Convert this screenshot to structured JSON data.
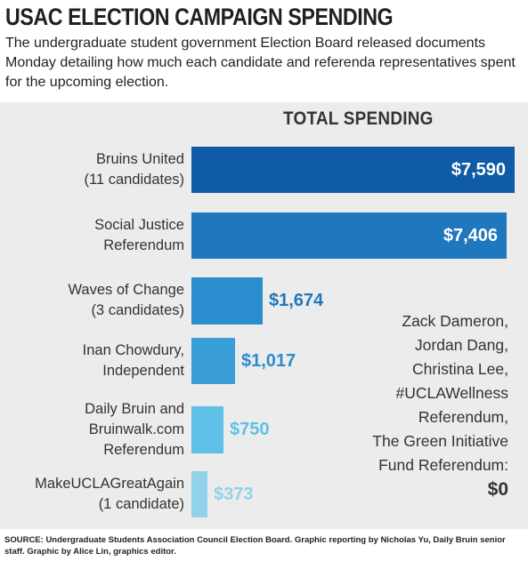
{
  "header": {
    "title": "USAC ELECTION CAMPAIGN SPENDING",
    "subtitle": "The undergraduate student government Election Board released documents Monday detailing how much each candidate and referenda representatives spent for the upcoming election."
  },
  "chart_data": {
    "type": "bar",
    "orientation": "horizontal",
    "title": "TOTAL SPENDING",
    "categories": [
      [
        "Bruins United",
        "(11 candidates)"
      ],
      [
        "Social Justice",
        "Referendum"
      ],
      [
        "Waves of Change",
        "(3 candidates)"
      ],
      [
        "Inan Chowdury,",
        "Independent"
      ],
      [
        "Daily Bruin and",
        "Bruinwalk.com",
        "Referendum"
      ],
      [
        "MakeUCLAGreatAgain",
        "(1 candidate)"
      ]
    ],
    "values": [
      7590,
      7406,
      1674,
      1017,
      750,
      373
    ],
    "value_labels": [
      "$7,590",
      "$7,406",
      "$1,674",
      "$1,017",
      "$750",
      "$373"
    ],
    "colors": [
      "#0f5ba6",
      "#1f77bd",
      "#2a8dcd",
      "#3a9ed9",
      "#5fc0e8",
      "#92d2ea"
    ],
    "label_colors": [
      "#ffffff",
      "#ffffff",
      "#1f77bd",
      "#2a8dcd",
      "#5fc0e8",
      "#92d2ea"
    ],
    "xlim": [
      0,
      7590
    ],
    "grid": false,
    "legend": false,
    "zero_spending_note": {
      "lines": [
        "Zack Dameron,",
        "Jordan Dang,",
        "Christina Lee,",
        "#UCLAWellness",
        "Referendum,",
        "The Green Initiative",
        "Fund Referendum:"
      ],
      "value": "$0"
    }
  },
  "footer": {
    "source_bold": "SOURCE: Undergraduate Students Association Council Election Board. Graphic reporting by Nicholas Yu, Daily Bruin senior staff. Graphic by Alice Lin, graphics editor."
  }
}
